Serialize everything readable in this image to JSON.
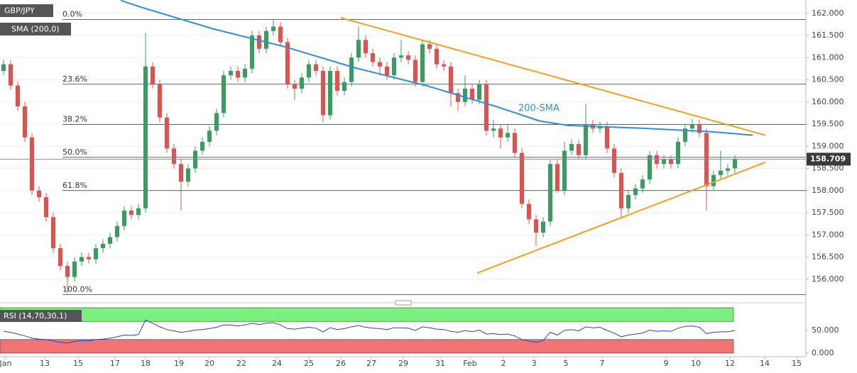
{
  "chart_data": [
    {
      "type": "candlestick",
      "symbol": "GBP/JPY",
      "up_color": "#3c9a62",
      "down_color": "#d95650",
      "x": [
        0,
        1,
        2,
        3,
        4,
        5,
        6,
        7,
        8,
        9,
        10,
        11,
        12,
        13,
        14,
        15,
        16,
        17,
        18,
        19,
        20,
        21,
        22,
        23,
        24,
        25,
        26,
        27,
        28,
        29,
        30,
        31,
        32,
        33,
        34,
        35,
        36,
        37,
        38,
        39,
        40,
        41,
        42,
        43,
        44,
        45,
        46,
        47,
        48,
        49,
        50,
        51,
        52,
        53,
        54,
        55,
        56,
        57,
        58,
        59,
        60,
        61,
        62,
        63,
        64,
        65,
        66,
        67,
        68,
        69,
        70,
        71,
        72,
        73,
        74,
        75,
        76,
        77,
        78,
        79,
        80,
        81,
        82,
        83,
        84,
        85,
        86,
        87,
        88,
        89,
        90,
        91,
        92,
        93,
        94,
        95,
        96,
        97,
        98,
        99,
        100,
        101,
        102,
        103
      ],
      "open": [
        160.7,
        160.85,
        160.37,
        159.9,
        159.2,
        158.0,
        157.85,
        157.4,
        156.7,
        156.3,
        156.05,
        156.4,
        156.5,
        156.45,
        156.7,
        156.8,
        156.95,
        157.2,
        157.55,
        157.45,
        157.6,
        160.8,
        160.4,
        159.65,
        158.95,
        158.6,
        158.2,
        158.5,
        158.9,
        159.1,
        159.35,
        159.75,
        160.6,
        160.7,
        160.55,
        160.75,
        161.5,
        161.2,
        161.6,
        161.7,
        161.35,
        160.4,
        160.3,
        160.55,
        160.85,
        160.7,
        159.7,
        160.7,
        160.25,
        160.45,
        161.0,
        161.4,
        161.1,
        160.9,
        160.8,
        160.6,
        161.0,
        161.05,
        160.95,
        160.45,
        161.3,
        161.2,
        160.85,
        160.8,
        160.2,
        160.0,
        160.3,
        160.05,
        160.4,
        159.35,
        159.4,
        159.2,
        159.3,
        158.85,
        157.7,
        157.35,
        157.05,
        157.3,
        158.6,
        158.0,
        158.9,
        159.05,
        158.8,
        159.5,
        159.4,
        159.45,
        158.95,
        158.4,
        157.6,
        157.9,
        158.05,
        158.25,
        158.8,
        158.6,
        158.7,
        158.6,
        159.1,
        159.4,
        159.5,
        159.3,
        158.1,
        158.35,
        158.45,
        158.5
      ],
      "high": [
        160.95,
        160.95,
        160.47,
        160.0,
        159.3,
        158.1,
        157.95,
        157.5,
        156.8,
        156.4,
        156.5,
        156.6,
        156.6,
        156.8,
        156.9,
        157.05,
        157.3,
        157.65,
        157.65,
        157.7,
        161.55,
        160.9,
        160.5,
        159.75,
        159.05,
        158.7,
        158.6,
        159.0,
        159.2,
        159.45,
        159.85,
        160.7,
        160.8,
        160.8,
        160.85,
        161.6,
        161.6,
        161.7,
        161.85,
        161.8,
        161.45,
        160.5,
        160.65,
        160.95,
        160.95,
        160.8,
        160.8,
        160.8,
        160.55,
        161.1,
        161.7,
        161.5,
        161.2,
        161.0,
        160.9,
        161.1,
        161.4,
        161.15,
        161.05,
        161.4,
        161.4,
        161.3,
        160.95,
        160.9,
        160.3,
        160.6,
        160.4,
        160.5,
        160.5,
        159.6,
        159.5,
        159.5,
        159.4,
        158.95,
        157.8,
        157.45,
        157.4,
        158.7,
        158.7,
        159.1,
        159.15,
        159.15,
        159.95,
        159.6,
        159.55,
        159.55,
        159.05,
        158.5,
        158.0,
        158.15,
        158.35,
        158.9,
        158.9,
        158.8,
        158.8,
        159.2,
        159.5,
        159.62,
        159.6,
        159.4,
        158.45,
        158.9,
        158.6,
        158.8
      ],
      "low": [
        160.6,
        160.27,
        159.8,
        159.1,
        157.9,
        157.75,
        157.3,
        156.6,
        156.2,
        155.68,
        155.95,
        156.3,
        156.35,
        156.35,
        156.6,
        156.7,
        156.85,
        157.1,
        157.35,
        157.35,
        157.5,
        160.3,
        159.55,
        158.85,
        158.5,
        157.55,
        158.1,
        158.4,
        158.8,
        159.0,
        159.25,
        159.65,
        160.5,
        160.45,
        160.45,
        160.65,
        161.1,
        161.1,
        161.5,
        161.25,
        160.3,
        160.05,
        160.2,
        160.45,
        160.6,
        159.55,
        159.6,
        160.15,
        160.15,
        160.35,
        160.9,
        161.0,
        160.8,
        160.6,
        160.5,
        160.5,
        160.9,
        160.85,
        160.35,
        160.35,
        161.1,
        160.75,
        160.7,
        159.9,
        159.8,
        159.9,
        159.95,
        159.95,
        159.25,
        159.2,
        158.95,
        159.1,
        158.75,
        157.6,
        157.25,
        156.75,
        156.95,
        157.2,
        157.95,
        157.9,
        158.8,
        158.7,
        158.7,
        159.3,
        159.3,
        158.85,
        158.3,
        157.4,
        157.5,
        157.8,
        157.95,
        158.15,
        158.5,
        158.5,
        158.5,
        158.5,
        159.0,
        159.3,
        159.2,
        157.55,
        158.0,
        158.25,
        158.35,
        158.4
      ],
      "close": [
        160.85,
        160.37,
        159.9,
        159.2,
        158.0,
        157.85,
        157.4,
        156.7,
        156.3,
        156.05,
        156.4,
        156.5,
        156.45,
        156.7,
        156.8,
        156.95,
        157.2,
        157.55,
        157.45,
        157.6,
        160.8,
        160.4,
        159.65,
        158.95,
        158.6,
        158.2,
        158.5,
        158.9,
        159.1,
        159.35,
        159.75,
        160.6,
        160.7,
        160.55,
        160.75,
        161.5,
        161.2,
        161.6,
        161.7,
        161.35,
        160.4,
        160.3,
        160.55,
        160.85,
        160.7,
        159.7,
        160.7,
        160.25,
        160.45,
        161.0,
        161.4,
        161.1,
        160.9,
        160.8,
        160.6,
        161.0,
        161.05,
        160.95,
        160.45,
        161.3,
        161.2,
        160.85,
        160.8,
        160.2,
        160.0,
        160.3,
        160.05,
        160.4,
        159.35,
        159.4,
        159.2,
        159.3,
        158.85,
        157.7,
        157.35,
        157.05,
        157.3,
        158.6,
        158.0,
        158.9,
        159.05,
        158.8,
        159.5,
        159.4,
        159.45,
        158.95,
        158.4,
        157.6,
        157.9,
        158.05,
        158.25,
        158.8,
        158.6,
        158.7,
        158.6,
        159.1,
        159.4,
        159.5,
        159.3,
        158.1,
        158.35,
        158.45,
        158.5,
        158.71
      ],
      "sma": {
        "name": "SMA (200,0)",
        "annotation": "200-SMA",
        "color": "#2e8fd8",
        "x": [
          16.5,
          19.5,
          29.5,
          39.5,
          49.5,
          59.5,
          69.5,
          75.5,
          79.5,
          89.5,
          99.5,
          105.5
        ],
        "values": [
          162.29,
          162.13,
          161.65,
          161.25,
          160.77,
          160.37,
          159.89,
          159.57,
          159.47,
          159.41,
          159.33,
          159.25
        ]
      },
      "trendlines": [
        {
          "color": "#f5a01e",
          "x": [
            47.5,
            107.3
          ],
          "values": [
            161.9,
            159.25
          ]
        },
        {
          "color": "#f5a01e",
          "x": [
            66.7,
            107.3
          ],
          "values": [
            156.14,
            158.64
          ]
        }
      ],
      "fib_levels": [
        {
          "label": "0.0%",
          "value": 161.86
        },
        {
          "label": "23.6%",
          "value": 160.4
        },
        {
          "label": "38.2%",
          "value": 159.49
        },
        {
          "label": "50.0%",
          "value": 158.75
        },
        {
          "label": "61.8%",
          "value": 158.0
        },
        {
          "label": "100.0%",
          "value": 155.65
        }
      ],
      "last_price": 158.709,
      "xlim": [
        -0.5,
        113
      ],
      "ylim": [
        155.5,
        162.3
      ],
      "grid": true,
      "yticks": [
        {
          "value": 156,
          "label": "156.000"
        },
        {
          "value": 156.5,
          "label": "156.500"
        },
        {
          "value": 157,
          "label": "157.000"
        },
        {
          "value": 157.5,
          "label": "157.500"
        },
        {
          "value": 158,
          "label": "158.000"
        },
        {
          "value": 158.5,
          "label": "158.500"
        },
        {
          "value": 159,
          "label": "159.000"
        },
        {
          "value": 159.5,
          "label": "159.500"
        },
        {
          "value": 160,
          "label": "160.000"
        },
        {
          "value": 160.5,
          "label": "160.500"
        },
        {
          "value": 161,
          "label": "161.000"
        },
        {
          "value": 161.5,
          "label": "161.500"
        },
        {
          "value": 162,
          "label": "162.000"
        }
      ],
      "xticks": [
        {
          "value": 0.3,
          "label": "Jan"
        },
        {
          "value": 5.8,
          "label": "13"
        },
        {
          "value": 10.5,
          "label": "15"
        },
        {
          "value": 15.7,
          "label": "17"
        },
        {
          "value": 20,
          "label": "18"
        },
        {
          "value": 24.7,
          "label": "19"
        },
        {
          "value": 29,
          "label": "20"
        },
        {
          "value": 33.5,
          "label": "22"
        },
        {
          "value": 38.5,
          "label": "24"
        },
        {
          "value": 43,
          "label": "25"
        },
        {
          "value": 47.5,
          "label": "26"
        },
        {
          "value": 51.8,
          "label": "27"
        },
        {
          "value": 56.3,
          "label": "29"
        },
        {
          "value": 61.5,
          "label": "31"
        },
        {
          "value": 65.7,
          "label": "Feb"
        },
        {
          "value": 70.4,
          "label": "2"
        },
        {
          "value": 74.7,
          "label": "3"
        },
        {
          "value": 79.2,
          "label": "5"
        },
        {
          "value": 84.3,
          "label": "7"
        },
        {
          "value": 93.3,
          "label": "9"
        },
        {
          "value": 97.5,
          "label": "10"
        },
        {
          "value": 102.3,
          "label": "12"
        },
        {
          "value": 107.2,
          "label": "14"
        },
        {
          "value": 111.7,
          "label": "15"
        }
      ]
    },
    {
      "type": "line",
      "title": "RSI (14,70,30,1)",
      "color": "#2b3fc4",
      "overbought": 70,
      "oversold": 30,
      "overbought_color": "#7cf07c",
      "oversold_color": "#f07474",
      "x": [
        0,
        1,
        2,
        3,
        4,
        5,
        6,
        7,
        8,
        9,
        10,
        11,
        12,
        13,
        14,
        15,
        16,
        17,
        18,
        19,
        20,
        21,
        22,
        23,
        24,
        25,
        26,
        27,
        28,
        29,
        30,
        31,
        32,
        33,
        34,
        35,
        36,
        37,
        38,
        39,
        40,
        41,
        42,
        43,
        44,
        45,
        46,
        47,
        48,
        49,
        50,
        51,
        52,
        53,
        54,
        55,
        56,
        57,
        58,
        59,
        60,
        61,
        62,
        63,
        64,
        65,
        66,
        67,
        68,
        69,
        70,
        71,
        72,
        73,
        74,
        75,
        76,
        77,
        78,
        79,
        80,
        81,
        82,
        83,
        84,
        85,
        86,
        87,
        88,
        89,
        90,
        91,
        92,
        93,
        94,
        95,
        96,
        97,
        98,
        99,
        100,
        101,
        102,
        103
      ],
      "values": [
        48,
        46,
        42,
        38,
        33,
        31,
        30,
        27,
        24,
        22,
        26,
        28,
        27,
        30,
        31,
        33,
        36,
        40,
        39,
        41,
        73,
        66,
        58,
        52,
        49,
        46,
        48,
        51,
        52,
        54,
        57,
        62,
        62,
        60,
        62,
        66,
        63,
        66,
        67,
        62,
        54,
        53,
        55,
        57,
        55,
        47,
        56,
        52,
        54,
        58,
        61,
        57,
        55,
        54,
        52,
        56,
        56,
        55,
        50,
        58,
        56,
        53,
        52,
        48,
        46,
        50,
        47,
        51,
        42,
        43,
        41,
        42,
        38,
        30,
        27,
        24,
        28,
        46,
        40,
        50,
        52,
        49,
        58,
        56,
        57,
        50,
        44,
        36,
        40,
        42,
        44,
        51,
        48,
        49,
        48,
        55,
        59,
        60,
        57,
        43,
        46,
        47,
        47,
        50
      ],
      "ylim": [
        0,
        100
      ],
      "yticks": [
        {
          "value": 50,
          "label": "50.000"
        },
        {
          "value": 0,
          "label": "0.000"
        }
      ]
    }
  ]
}
